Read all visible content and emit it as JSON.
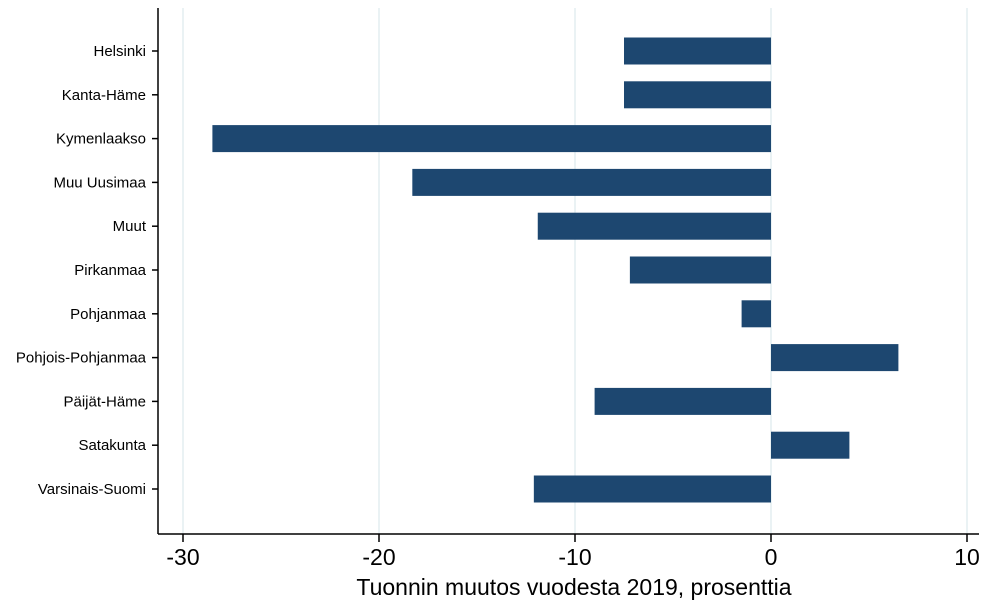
{
  "chart_data": {
    "type": "bar",
    "orientation": "horizontal",
    "categories": [
      "Helsinki",
      "Kanta-Häme",
      "Kymenlaakso",
      "Muu Uusimaa",
      "Muut",
      "Pirkanmaa",
      "Pohjanmaa",
      "Pohjois-Pohjanmaa",
      "Päijät-Häme",
      "Satakunta",
      "Varsinais-Suomi"
    ],
    "values": [
      -7.5,
      -7.5,
      -28.5,
      -18.3,
      -11.9,
      -7.2,
      -1.5,
      6.5,
      -9.0,
      4.0,
      -12.1
    ],
    "title": "",
    "xlabel": "Tuonnin muutos vuodesta 2019, prosenttia",
    "ylabel": "",
    "xlim": [
      -30.5,
      10.7
    ],
    "xticks": [
      -30,
      -20,
      -10,
      0,
      10
    ],
    "xtick_labels": [
      "-30",
      "-20",
      "-10",
      "0",
      "10"
    ],
    "grid": "vertical",
    "bar_color": "#1d4770",
    "grid_color": "#e4eef1"
  }
}
